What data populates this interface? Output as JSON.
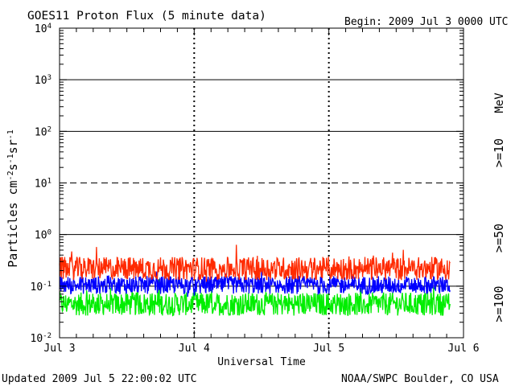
{
  "header": {
    "title": "GOES11 Proton Flux (5 minute data)",
    "begin": "Begin: 2009 Jul 3 0000 UTC"
  },
  "footer": {
    "updated": "Updated 2009 Jul  5 22:00:02 UTC",
    "credit": "NOAA/SWPC Boulder, CO USA"
  },
  "colors": {
    "ge10": "#ff2a00",
    "ge50": "#0000ff",
    "ge100": "#00ee00",
    "axis": "#000000"
  },
  "chart_data": {
    "type": "line",
    "xlabel": "Universal Time",
    "ylabel": "Particles cm-2 s-1 sr-1",
    "yscale": "log",
    "ylim": [
      0.01,
      10000
    ],
    "y_ticks": [
      {
        "value": 10000,
        "mantissa": "10",
        "exp": "4"
      },
      {
        "value": 1000,
        "mantissa": "10",
        "exp": "3"
      },
      {
        "value": 100,
        "mantissa": "10",
        "exp": "2"
      },
      {
        "value": 10,
        "mantissa": "10",
        "exp": "1"
      },
      {
        "value": 1,
        "mantissa": "10",
        "exp": "0"
      },
      {
        "value": 0.1,
        "mantissa": "10",
        "exp": "-1"
      },
      {
        "value": 0.01,
        "mantissa": "10",
        "exp": "-2"
      }
    ],
    "x_ticks": [
      "Jul 3",
      "Jul 4",
      "Jul 5",
      "Jul 6"
    ],
    "xlim_days": [
      0,
      3
    ],
    "data_end_day": 2.9,
    "right_unit": "MeV",
    "series": [
      {
        "name": ">=10",
        "key": "ge10",
        "base": 0.22,
        "spread": 0.45
      },
      {
        "name": ">=50",
        "key": "ge50",
        "base": 0.105,
        "spread": 0.35
      },
      {
        "name": ">=100",
        "key": "ge100",
        "base": 0.045,
        "spread": 0.45
      }
    ],
    "threshold_lines": [
      {
        "value": 1000,
        "style": "solid"
      },
      {
        "value": 100,
        "style": "solid"
      },
      {
        "value": 10,
        "style": "dashed"
      },
      {
        "value": 1,
        "style": "solid"
      },
      {
        "value": 0.1,
        "style": "solid"
      }
    ]
  }
}
